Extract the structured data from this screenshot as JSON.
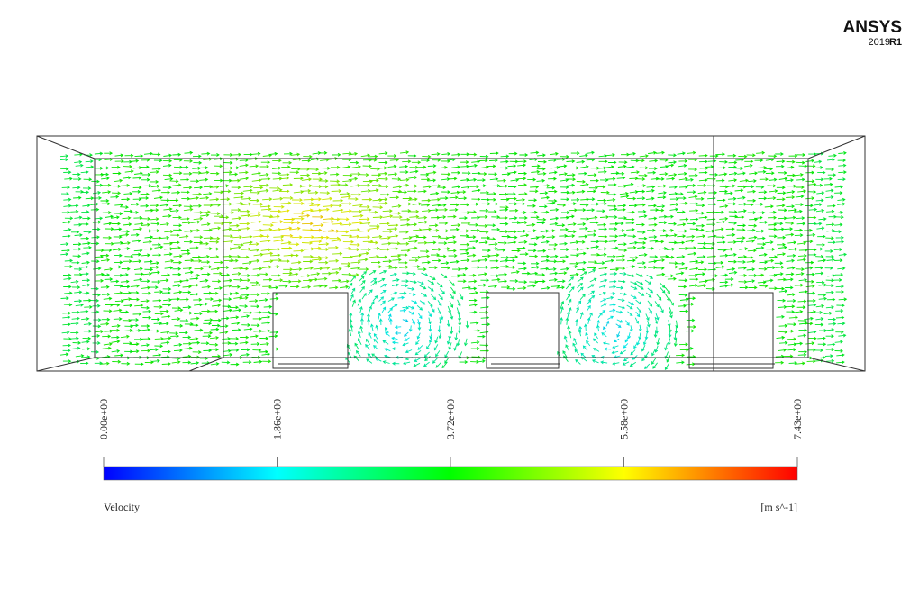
{
  "logo": {
    "brand": "ANSYS",
    "version": "2019",
    "release": "R1"
  },
  "legend": {
    "title": "Velocity",
    "unit": "[m s^-1]",
    "ticks": [
      "0.00e+00",
      "1.86e+00",
      "3.72e+00",
      "5.58e+00",
      "7.43e+00"
    ]
  }
}
